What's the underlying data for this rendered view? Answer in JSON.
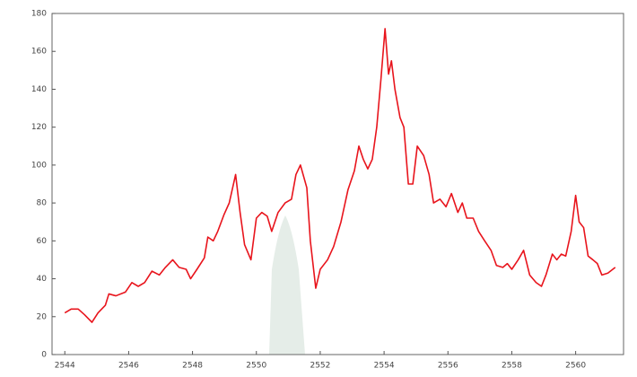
{
  "chart_data": {
    "type": "line",
    "x": [
      2544.0,
      2544.2,
      2544.42,
      2544.62,
      2544.85,
      2545.04,
      2545.27,
      2545.38,
      2545.6,
      2545.9,
      2546.1,
      2546.3,
      2546.5,
      2546.73,
      2546.96,
      2547.15,
      2547.38,
      2547.58,
      2547.8,
      2547.94,
      2548.14,
      2548.37,
      2548.48,
      2548.65,
      2548.79,
      2548.99,
      2549.15,
      2549.35,
      2549.49,
      2549.63,
      2549.83,
      2550.0,
      2550.17,
      2550.34,
      2550.48,
      2550.68,
      2550.9,
      2551.1,
      2551.24,
      2551.38,
      2551.58,
      2551.69,
      2551.86,
      2552.0,
      2552.23,
      2552.42,
      2552.65,
      2552.87,
      2553.07,
      2553.21,
      2553.35,
      2553.49,
      2553.63,
      2553.77,
      2553.9,
      2554.03,
      2554.14,
      2554.23,
      2554.34,
      2554.5,
      2554.62,
      2554.76,
      2554.9,
      2555.04,
      2555.24,
      2555.41,
      2555.55,
      2555.75,
      2555.94,
      2556.11,
      2556.31,
      2556.45,
      2556.59,
      2556.79,
      2556.96,
      2557.15,
      2557.35,
      2557.52,
      2557.72,
      2557.86,
      2558.0,
      2558.2,
      2558.37,
      2558.56,
      2558.76,
      2558.93,
      2559.07,
      2559.27,
      2559.41,
      2559.55,
      2559.69,
      2559.86,
      2560.0,
      2560.11,
      2560.25,
      2560.39,
      2560.54,
      2560.68,
      2560.82,
      2561.01,
      2561.24
    ],
    "series": [
      {
        "color": "#e8141c",
        "values": [
          22,
          24,
          24,
          21,
          17,
          22,
          26,
          32,
          31,
          33,
          38,
          36,
          38,
          44,
          42,
          46,
          50,
          46,
          45,
          40,
          45,
          51,
          62,
          60,
          65,
          74,
          80,
          95,
          75,
          58,
          50,
          72,
          75,
          73,
          65,
          75,
          80,
          82,
          95,
          100,
          88,
          60,
          35,
          45,
          50,
          57,
          70,
          87,
          97,
          110,
          103,
          98,
          103,
          120,
          145,
          172,
          148,
          155,
          140,
          125,
          120,
          90,
          90,
          110,
          105,
          95,
          80,
          82,
          78,
          85,
          75,
          80,
          72,
          72,
          65,
          60,
          55,
          47,
          46,
          48,
          45,
          50,
          55,
          42,
          38,
          36,
          42,
          53,
          50,
          53,
          52,
          65,
          84,
          70,
          67,
          52,
          50,
          48,
          42,
          43,
          46
        ]
      }
    ],
    "xlim": [
      2543.6,
      2561.5
    ],
    "xticks": [
      2544,
      2546,
      2548,
      2550,
      2552,
      2554,
      2556,
      2558,
      2560
    ],
    "ylim": [
      0,
      180
    ],
    "yticks": [
      0,
      20,
      40,
      60,
      80,
      100,
      120,
      140,
      160,
      180
    ],
    "grid": false
  }
}
